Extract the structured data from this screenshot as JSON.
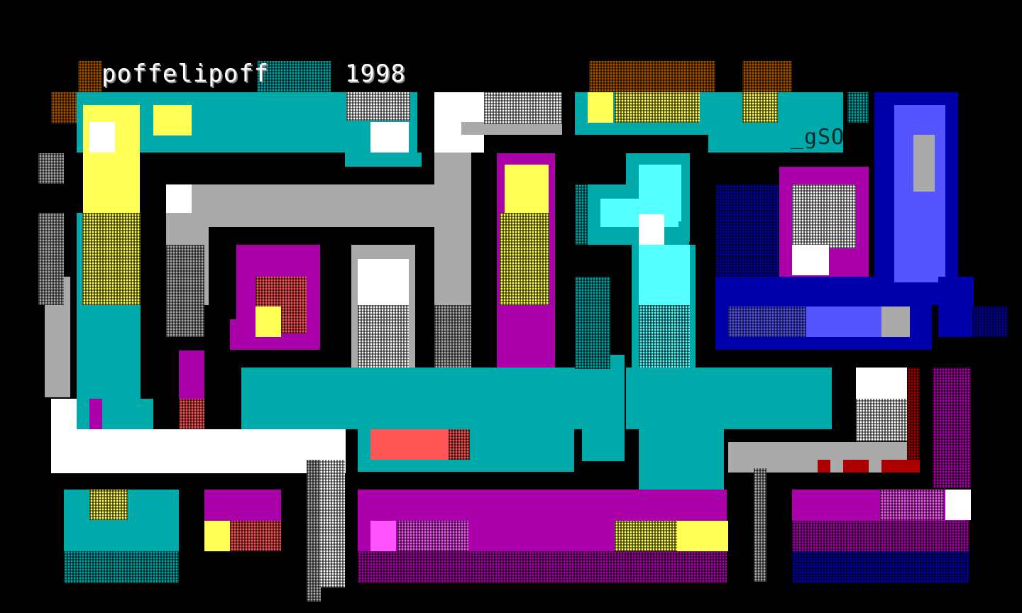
{
  "title": "poffelipoff",
  "year": "1998",
  "signature": "_gSO",
  "palette": {
    "cyan": "#00AAAA",
    "bright_cyan": "#55FFFF",
    "yellow": "#FFFF55",
    "white": "#FFFFFF",
    "gray": "#AAAAAA",
    "magenta": "#AA00AA",
    "bright_magenta": "#FF55FF",
    "blue": "#0000AA",
    "light_blue": "#5555FF",
    "red": "#AA0000",
    "light_red": "#FF5555",
    "brown": "#AA5500",
    "background": "#000000"
  }
}
